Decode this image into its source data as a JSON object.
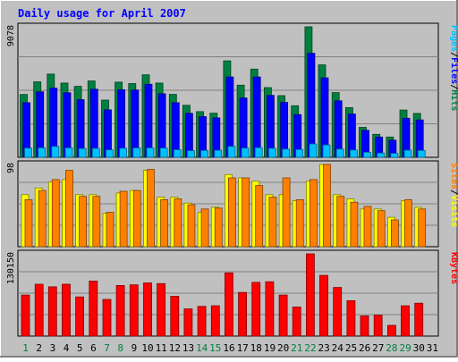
{
  "chart_data": {
    "type": "bar",
    "title": "Daily usage for April 2007",
    "days": [
      "1",
      "2",
      "3",
      "4",
      "5",
      "6",
      "7",
      "8",
      "9",
      "10",
      "11",
      "12",
      "13",
      "14",
      "15",
      "16",
      "17",
      "18",
      "19",
      "20",
      "21",
      "22",
      "23",
      "24",
      "25",
      "26",
      "27",
      "28",
      "29",
      "30",
      "31"
    ],
    "weekend_days": [
      "1",
      "7",
      "8",
      "14",
      "15",
      "21",
      "22",
      "28",
      "29"
    ],
    "panels": [
      {
        "id": "hits",
        "ymax": 9078,
        "ymax_label": "9078",
        "legend": [
          {
            "label": "Pages",
            "color": "#00c0ff"
          },
          {
            "label": "/",
            "color": "#000000"
          },
          {
            "label": "Files",
            "color": "#0000ff"
          },
          {
            "label": "/",
            "color": "#000000"
          },
          {
            "label": "Hits",
            "color": "#008040"
          }
        ],
        "series": [
          {
            "name": "Hits",
            "color": "#008040",
            "values": [
              4370,
              5250,
              5790,
              5170,
              4940,
              5310,
              3980,
              5230,
              5130,
              5740,
              5170,
              4380,
              3620,
              3180,
              3070,
              6710,
              5020,
              6140,
              4850,
              4290,
              3590,
              9078,
              6430,
              4500,
              3460,
              2080,
              1600,
              1410,
              3290,
              3050,
              0
            ]
          },
          {
            "name": "Files",
            "color": "#0000ff",
            "values": [
              3800,
              4560,
              4810,
              4490,
              4010,
              4740,
              3300,
              4700,
              4680,
              5080,
              4420,
              3800,
              3060,
              2830,
              2740,
              5590,
              4130,
              5590,
              4310,
              3820,
              2970,
              7240,
              5530,
              3930,
              3010,
              1880,
              1410,
              1190,
              2720,
              2600,
              0
            ]
          },
          {
            "name": "Pages",
            "color": "#00c0ff",
            "values": [
              640,
              660,
              760,
              660,
              610,
              620,
              520,
              630,
              650,
              660,
              640,
              530,
              460,
              480,
              490,
              760,
              640,
              670,
              630,
              570,
              550,
              930,
              860,
              580,
              510,
              350,
              300,
              280,
              500,
              470,
              0
            ]
          }
        ]
      },
      {
        "id": "visits",
        "ymax": 98,
        "ymax_label": "98",
        "legend": [
          {
            "label": "Sites",
            "color": "#ff8000"
          },
          {
            "label": "/",
            "color": "#000000"
          },
          {
            "label": "Visits",
            "color": "#ffff00"
          }
        ],
        "series": [
          {
            "name": "Visits",
            "color": "#ffff00",
            "values": [
              62,
              70,
              77,
              80,
              62,
              62,
              40,
              64,
              67,
              91,
              59,
              59,
              52,
              41,
              47,
              86,
              82,
              78,
              62,
              62,
              55,
              78,
              98,
              62,
              57,
              45,
              45,
              35,
              55,
              47,
              0
            ]
          },
          {
            "name": "Sites",
            "color": "#ff8000",
            "values": [
              56,
              67,
              80,
              91,
              60,
              60,
              41,
              66,
              67,
              92,
              56,
              57,
              50,
              45,
              46,
              82,
              82,
              73,
              59,
              82,
              56,
              80,
              98,
              60,
              53,
              48,
              43,
              32,
              56,
              45,
              0
            ]
          }
        ]
      },
      {
        "id": "kbytes",
        "ymax": 130150,
        "ymax_label": "130150",
        "legend": [
          {
            "label": "KBytes",
            "color": "#ff0000"
          }
        ],
        "series": [
          {
            "name": "KBytes",
            "color": "#ff0000",
            "values": [
              65000,
              82000,
              78000,
              82000,
              62000,
              87000,
              58000,
              80000,
              81000,
              84000,
              83000,
              63000,
              43000,
              47000,
              48000,
              100000,
              69000,
              85000,
              86000,
              65000,
              46000,
              130150,
              96000,
              77000,
              56000,
              32000,
              33000,
              17000,
              48000,
              52000,
              0
            ]
          }
        ]
      }
    ],
    "grid": true
  }
}
